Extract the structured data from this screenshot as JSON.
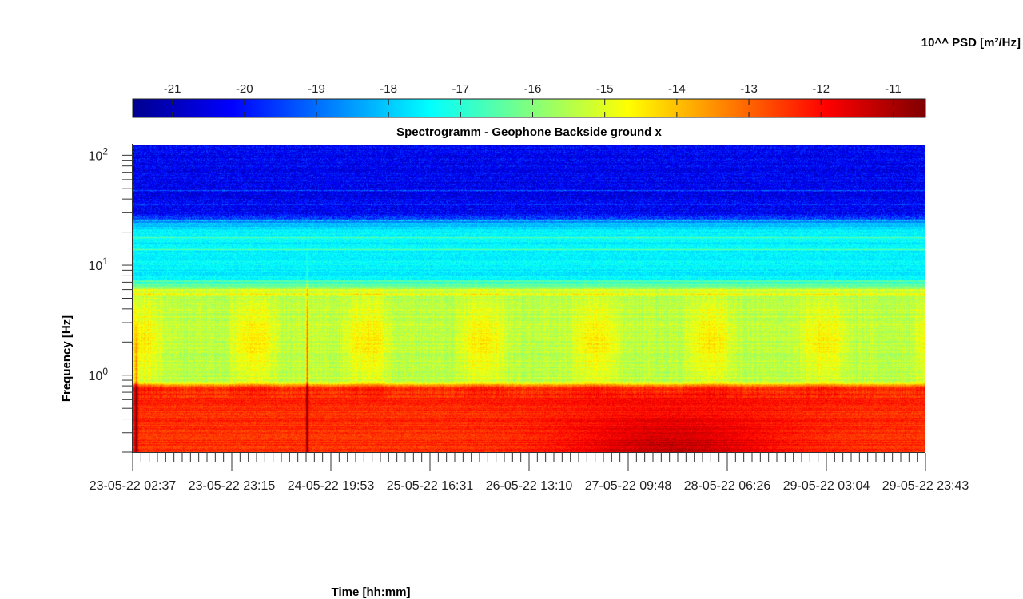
{
  "colorbar": {
    "title": "10^^ PSD [m²/Hz]",
    "ticks": [
      "-21",
      "-20",
      "-19",
      "-18",
      "-17",
      "-16",
      "-15",
      "-14",
      "-13",
      "-12",
      "-11"
    ],
    "range": [
      -21.55,
      -10.55
    ],
    "colormap": "jet"
  },
  "chart_data": {
    "type": "heatmap",
    "title": "Spectrogramm - Geophone Backside ground x",
    "xlabel": "Time [hh:mm]",
    "ylabel": "Frequency [Hz]",
    "y_scale": "log",
    "ylim": [
      0.2,
      125
    ],
    "xlim": [
      "23-05-22 02:37",
      "29-05-22 23:43"
    ],
    "x_ticks": [
      "23-05-22 02:37",
      "23-05-22 23:15",
      "24-05-22 19:53",
      "25-05-22 16:31",
      "26-05-22 13:10",
      "27-05-22 09:48",
      "28-05-22 06:26",
      "29-05-22 03:04",
      "29-05-22 23:43"
    ],
    "y_ticks": [
      {
        "base": "10",
        "exp": "0"
      },
      {
        "base": "10",
        "exp": "1"
      },
      {
        "base": "10",
        "exp": "2"
      }
    ],
    "grid": false,
    "value_unit": "log10 PSD [m²/Hz]",
    "approximate_levels": [
      {
        "band_hz": [
          30,
          125
        ],
        "log10_psd": -20.3
      },
      {
        "band_hz": [
          7,
          30
        ],
        "log10_psd": -17.6
      },
      {
        "band_hz": [
          0.8,
          5
        ],
        "log10_psd": -15.3
      },
      {
        "band_hz": [
          0.2,
          0.7
        ],
        "log10_psd": -12.2
      }
    ]
  }
}
